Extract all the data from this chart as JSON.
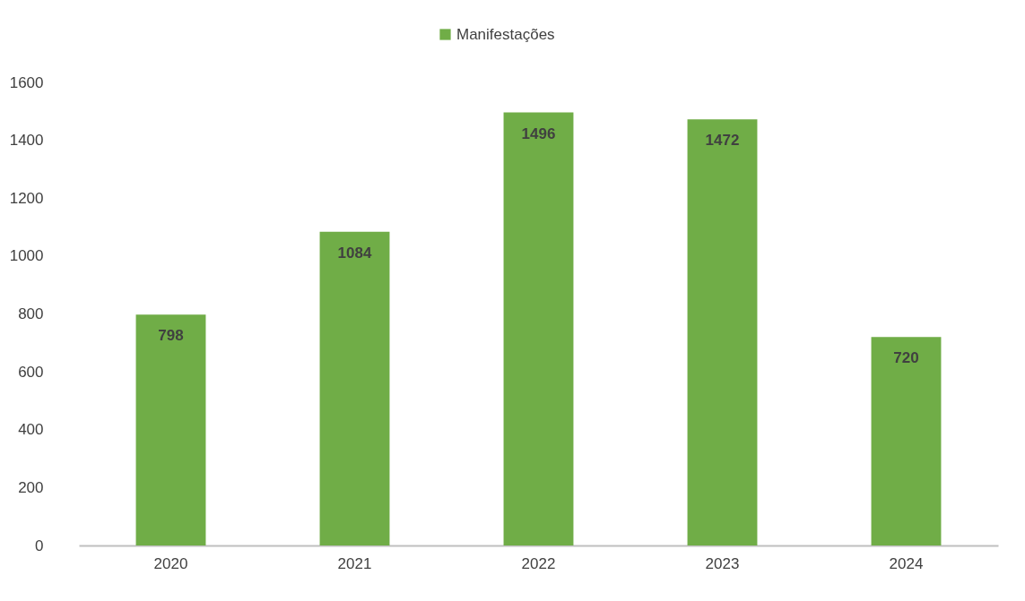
{
  "chart_data": {
    "type": "bar",
    "categories": [
      "2020",
      "2021",
      "2022",
      "2023",
      "2024"
    ],
    "series": [
      {
        "name": "Manifestações",
        "color": "#70ad47",
        "values": [
          798,
          1084,
          1496,
          1472,
          720
        ]
      }
    ],
    "ylim": [
      0,
      1600
    ],
    "yticks": [
      0,
      200,
      400,
      600,
      800,
      1000,
      1200,
      1400,
      1600
    ],
    "grid": false,
    "legend": "top",
    "data_labels": true
  }
}
